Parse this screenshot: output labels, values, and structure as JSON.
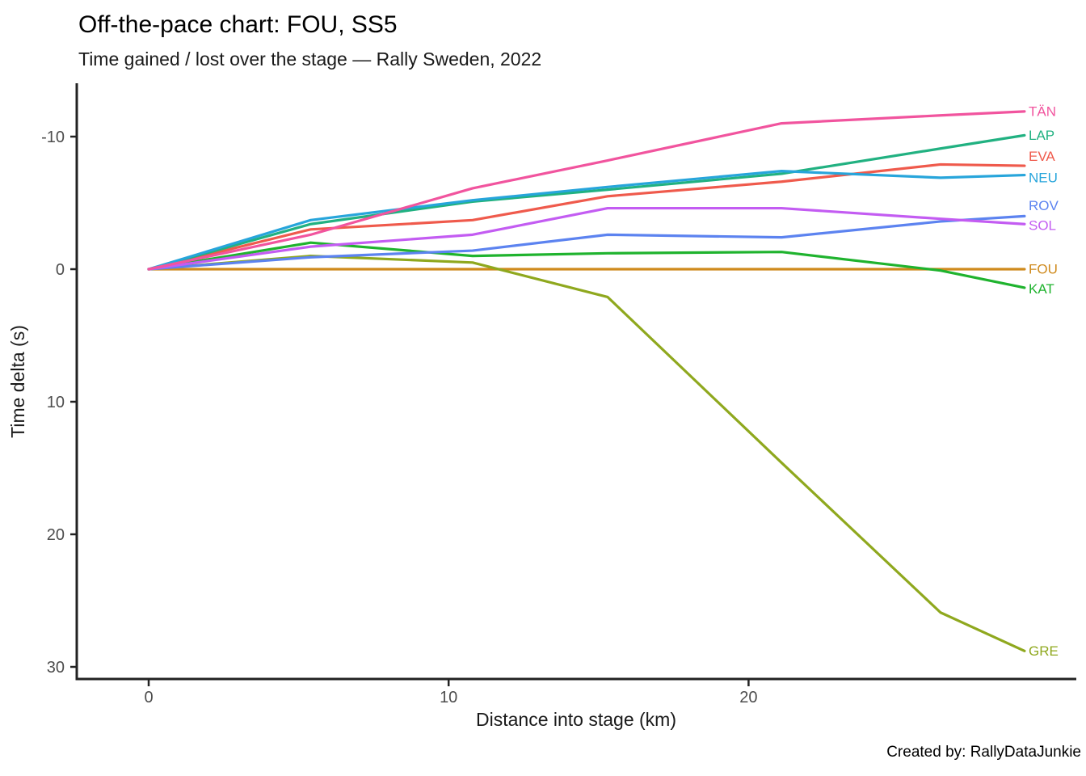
{
  "chart_data": {
    "type": "line",
    "title": "Off-the-pace chart: FOU, SS5",
    "subtitle": "Time gained / lost over the stage — Rally Sweden, 2022",
    "xlabel": "Distance into stage (km)",
    "ylabel": "Time delta (s)",
    "caption": "Created by: RallyDataJunkie",
    "x_km": [
      0,
      5.4,
      10.8,
      15.3,
      21.1,
      26.4,
      29.2
    ],
    "xticks": [
      0,
      10,
      20
    ],
    "yticks": [
      -10,
      0,
      10,
      20,
      30
    ],
    "xlim": [
      -2.4,
      31.0
    ],
    "ylim": [
      -13.9,
      31.0
    ],
    "y_axis_reversed": true,
    "grid": false,
    "legend": "labels-at-line-ends",
    "colors": {
      "axis_line": "#222222",
      "tick_text": "#4d4d4d",
      "title_text": "#000000"
    },
    "series": [
      {
        "name": "EVA",
        "color": "#EF5A4C",
        "values": [
          0,
          -3.0,
          -3.7,
          -5.5,
          -6.6,
          -7.9,
          -7.8
        ],
        "label_s": -8.5
      },
      {
        "name": "FOU",
        "color": "#CF8A1D",
        "values": [
          0,
          0,
          0,
          0,
          0,
          0,
          0
        ],
        "label_s": 0
      },
      {
        "name": "GRE",
        "color": "#8FA81E",
        "values": [
          0,
          -1.0,
          -0.5,
          2.1,
          14.6,
          25.9,
          28.8
        ],
        "label_s": 28.8
      },
      {
        "name": "KAT",
        "color": "#1FB32E",
        "values": [
          0,
          -2.0,
          -1.0,
          -1.2,
          -1.3,
          0.1,
          1.4
        ],
        "label_s": 1.5
      },
      {
        "name": "LAP",
        "color": "#21B181",
        "values": [
          0,
          -3.4,
          -5.1,
          -6.0,
          -7.2,
          -9.1,
          -10.1
        ],
        "label_s": -10.1
      },
      {
        "name": "NEU",
        "color": "#27A5DB",
        "values": [
          0,
          -3.7,
          -5.2,
          -6.2,
          -7.4,
          -6.9,
          -7.1
        ],
        "label_s": -6.9
      },
      {
        "name": "ROV",
        "color": "#5C83F0",
        "values": [
          0,
          -0.9,
          -1.4,
          -2.6,
          -2.4,
          -3.6,
          -4.0
        ],
        "label_s": -4.8
      },
      {
        "name": "SOL",
        "color": "#C35CF2",
        "values": [
          0,
          -1.7,
          -2.6,
          -4.6,
          -4.6,
          -3.8,
          -3.4
        ],
        "label_s": -3.3
      },
      {
        "name": "TÄN",
        "color": "#F1549E",
        "values": [
          0,
          -2.6,
          -6.1,
          -8.2,
          -11.0,
          -11.6,
          -11.9
        ],
        "label_s": -11.9
      }
    ]
  }
}
